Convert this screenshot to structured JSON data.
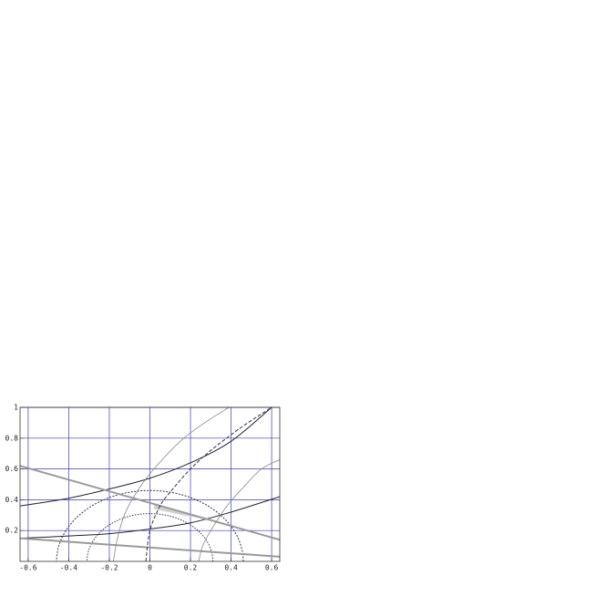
{
  "chart_data": {
    "type": "line",
    "xlim": [
      -0.64,
      0.64
    ],
    "ylim": [
      0,
      1
    ],
    "xticks": [
      -0.6,
      -0.4,
      -0.2,
      0,
      0.2,
      0.4,
      0.6
    ],
    "yticks": [
      0.2,
      0.4,
      0.6,
      0.8,
      1
    ],
    "grid": true,
    "grid_color": "#3a3ab8",
    "curves": [
      {
        "color": "#222233",
        "width": 1,
        "dash": "none",
        "x": [
          -0.64,
          -0.4,
          -0.2,
          0,
          0.2,
          0.4,
          0.6
        ],
        "y": [
          0.36,
          0.41,
          0.47,
          0.54,
          0.64,
          0.78,
          1.0
        ]
      },
      {
        "color": "#222233",
        "width": 1,
        "dash": "none",
        "x": [
          -0.64,
          -0.4,
          -0.2,
          0,
          0.2,
          0.4,
          0.64
        ],
        "y": [
          0.15,
          0.165,
          0.18,
          0.21,
          0.25,
          0.32,
          0.42
        ]
      },
      {
        "color": "#9a9a9a",
        "width": 2,
        "dash": "none",
        "x": [
          -0.64,
          0.64
        ],
        "y": [
          0.62,
          0.14
        ]
      },
      {
        "color": "#9a9a9a",
        "width": 2,
        "dash": "none",
        "x": [
          -0.64,
          0.64
        ],
        "y": [
          0.15,
          0.03
        ]
      },
      {
        "color": "#333355",
        "width": 1,
        "dash": "4 2",
        "x": [
          -0.02,
          0.0,
          0.05,
          0.1,
          0.2,
          0.3,
          0.45,
          0.6
        ],
        "y": [
          0,
          0.2,
          0.36,
          0.45,
          0.6,
          0.72,
          0.87,
          1.0
        ]
      },
      {
        "color": "#8a8a8a",
        "width": 0.8,
        "dash": "none",
        "x": [
          -0.18,
          -0.16,
          -0.12,
          -0.05,
          0.02,
          0.15,
          0.27,
          0.39
        ],
        "y": [
          0,
          0.15,
          0.32,
          0.48,
          0.6,
          0.78,
          0.9,
          1.0
        ]
      },
      {
        "color": "#8a8a8a",
        "width": 0.8,
        "dash": "none",
        "x": [
          0.24,
          0.26,
          0.3,
          0.38,
          0.46,
          0.55,
          0.64
        ],
        "y": [
          0,
          0.1,
          0.2,
          0.36,
          0.48,
          0.6,
          0.66
        ]
      }
    ],
    "circles": [
      {
        "cx": 0,
        "r": 0.31,
        "color": "#333355",
        "dash": "1.5 1.5"
      },
      {
        "cx": 0,
        "r": 0.46,
        "color": "#333355",
        "dash": "2 1.5"
      }
    ],
    "region": {
      "color": "#d0d0d0",
      "x": [
        0.02,
        0.25,
        0.16,
        0.02
      ],
      "y": [
        0.37,
        0.28,
        0.3,
        0.34
      ]
    }
  }
}
